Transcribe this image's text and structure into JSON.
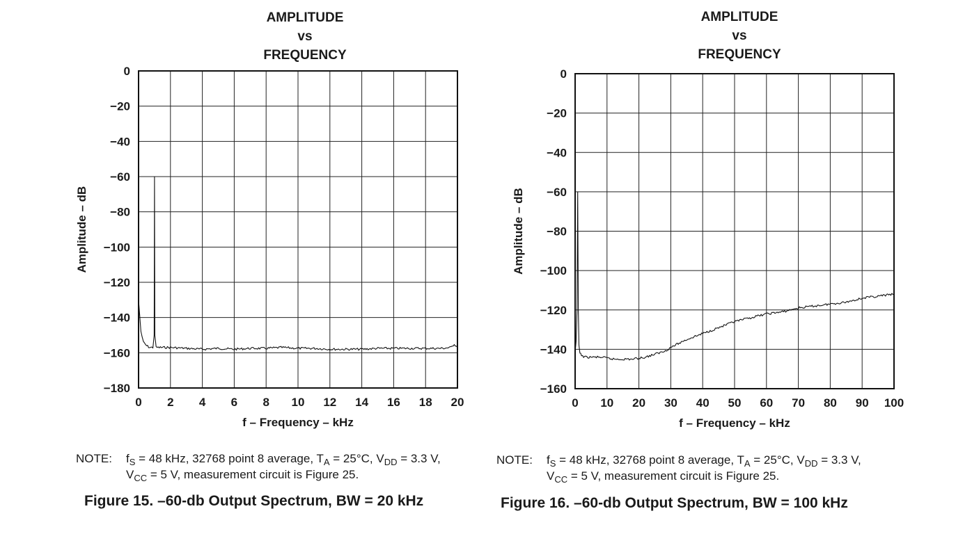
{
  "chart_data": [
    {
      "type": "line",
      "title_lines": [
        "AMPLITUDE",
        "vs",
        "FREQUENCY"
      ],
      "xlabel": "f – Frequency – kHz",
      "ylabel": "Amplitude – dB",
      "xlim": [
        0,
        20
      ],
      "ylim": [
        -180,
        0
      ],
      "xticks": [
        "0",
        "2",
        "4",
        "6",
        "8",
        "10",
        "12",
        "14",
        "16",
        "18",
        "20"
      ],
      "yticks": [
        "0",
        "−20",
        "−40",
        "−60",
        "−80",
        "−100",
        "−120",
        "−140",
        "−160",
        "−180"
      ],
      "grid": true,
      "series": [
        {
          "x": [
            0,
            0.15,
            0.3,
            0.5,
            0.7,
            0.9,
            0.98,
            1.0,
            1.02,
            1.1,
            1.3,
            2,
            3,
            4,
            5,
            6,
            7,
            8,
            9,
            10,
            11,
            12,
            13,
            14,
            15,
            16,
            17,
            18,
            19,
            19.6,
            19.8,
            20
          ],
          "y": [
            -130,
            -148,
            -154,
            -156,
            -157,
            -157,
            -150,
            -60,
            -150,
            -157,
            -157,
            -157,
            -157.5,
            -158,
            -157.5,
            -158,
            -157.5,
            -157.5,
            -157,
            -157.5,
            -157.5,
            -158,
            -158,
            -158,
            -157.5,
            -157.5,
            -157.5,
            -157.5,
            -157.5,
            -157,
            -155,
            -157
          ]
        }
      ],
      "note": {
        "label": "NOTE:",
        "line1": [
          "f",
          "S",
          " = 48 kHz, 32768 point 8 average, T",
          "A",
          " = 25°C, V",
          "DD",
          " = 3.3 V,"
        ],
        "line2": [
          "V",
          "CC",
          " = 5 V, measurement circuit is Figure 25."
        ]
      },
      "caption": "Figure 15. –60-db Output Spectrum, BW = 20 kHz"
    },
    {
      "type": "line",
      "title_lines": [
        "AMPLITUDE",
        "vs",
        "FREQUENCY"
      ],
      "xlabel": "f – Frequency – kHz",
      "ylabel": "Amplitude – dB",
      "xlim": [
        0,
        100
      ],
      "ylim": [
        -160,
        0
      ],
      "xticks": [
        "0",
        "10",
        "20",
        "30",
        "40",
        "50",
        "60",
        "70",
        "80",
        "90",
        "100"
      ],
      "yticks": [
        "0",
        "−20",
        "−40",
        "−60",
        "−80",
        "−100",
        "−120",
        "−140",
        "−160"
      ],
      "grid": true,
      "series": [
        {
          "x": [
            0,
            0.3,
            0.6,
            0.8,
            1.0,
            1.2,
            1.5,
            2,
            3,
            5,
            8,
            10,
            12,
            15,
            18,
            20,
            22,
            25,
            28,
            30,
            35,
            40,
            45,
            50,
            55,
            60,
            65,
            70,
            75,
            80,
            85,
            90,
            95,
            100
          ],
          "y": [
            -142,
            -136,
            -120,
            -60,
            -120,
            -138,
            -142,
            -143,
            -144,
            -144,
            -144,
            -144.5,
            -145,
            -145,
            -145,
            -144.5,
            -144,
            -142.5,
            -141,
            -139,
            -135,
            -132,
            -129,
            -126,
            -124,
            -122,
            -121,
            -119,
            -118,
            -117,
            -116,
            -114,
            -113,
            -112
          ]
        }
      ],
      "note": {
        "label": "NOTE:",
        "line1": [
          "f",
          "S",
          " = 48 kHz, 32768 point 8 average, T",
          "A",
          " = 25°C, V",
          "DD",
          " = 3.3 V,"
        ],
        "line2": [
          "V",
          "CC",
          " = 5 V, measurement circuit is Figure 25."
        ]
      },
      "caption": "Figure 16. –60-db Output Spectrum, BW = 100 kHz"
    }
  ]
}
